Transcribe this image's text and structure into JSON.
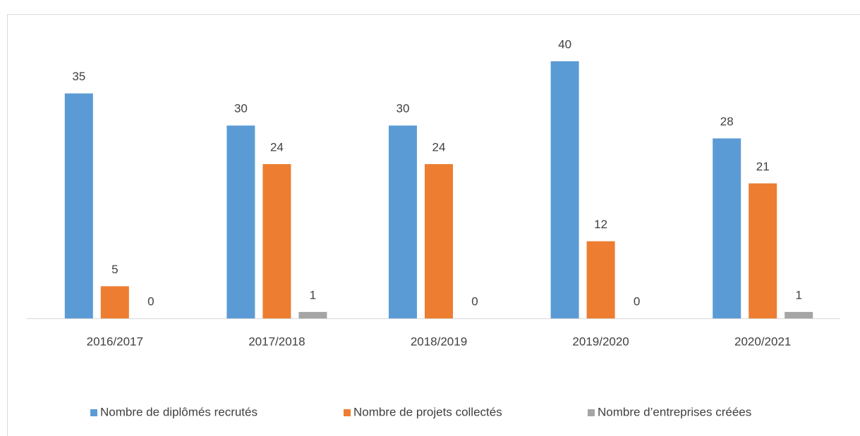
{
  "chart_data": {
    "type": "bar",
    "categories": [
      "2016/2017",
      "2017/2018",
      "2018/2019",
      "2019/2020",
      "2020/2021"
    ],
    "series": [
      {
        "name": "Nombre de diplômés recrutés",
        "color": "#5b9bd5",
        "values": [
          35,
          30,
          30,
          40,
          28
        ]
      },
      {
        "name": "Nombre de projets collectés",
        "color": "#ed7d31",
        "values": [
          5,
          24,
          24,
          12,
          21
        ]
      },
      {
        "name": "Nombre d’entreprises créées",
        "color": "#a5a5a5",
        "values": [
          0,
          1,
          0,
          0,
          1
        ]
      }
    ],
    "ylim": [
      0,
      40
    ],
    "legend": "bottom"
  }
}
